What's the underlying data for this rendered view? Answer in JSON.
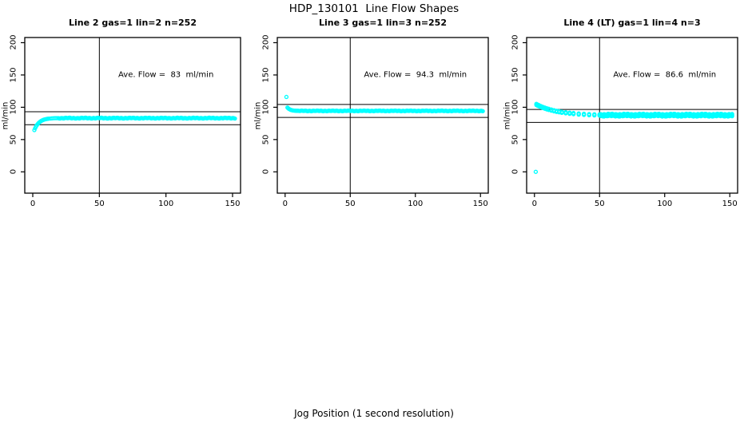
{
  "figure": {
    "main_title": "HDP_130101  Line Flow Shapes",
    "x_axis_label": "Jog Position (1 second resolution)"
  },
  "colors": {
    "marker": "#00ffff",
    "axis": "#000000",
    "refline": "#000000",
    "background": "#ffffff",
    "text": "#000000"
  },
  "chart_data": [
    {
      "type": "scatter",
      "title": "Line 2 gas=1 lin=2 n=252",
      "ylabel": "ml/min",
      "ave_flow": 83,
      "ave_flow_label": "Ave. Flow =  83  ml/min",
      "annotation_xy": [
        100,
        150
      ],
      "n_label": 252,
      "x_ticks": [
        0,
        50,
        100,
        150
      ],
      "y_ticks": [
        0,
        50,
        100,
        150,
        200
      ],
      "xlim": [
        -6,
        156
      ],
      "ylim": [
        -33,
        208
      ],
      "vline_x": 50,
      "hlines_y": [
        93,
        73
      ],
      "marker_style": "open-circle",
      "outlier_points": [],
      "transient_points": [
        [
          1.2,
          64.7
        ],
        [
          1.8,
          67.5
        ],
        [
          2.4,
          70.0
        ],
        [
          3.0,
          72.0
        ],
        [
          3.6,
          73.7
        ],
        [
          4.2,
          75.2
        ],
        [
          4.8,
          76.4
        ],
        [
          5.4,
          77.5
        ],
        [
          6.0,
          78.4
        ],
        [
          6.6,
          79.1
        ],
        [
          7.2,
          79.8
        ],
        [
          7.8,
          80.3
        ],
        [
          8.4,
          80.8
        ],
        [
          9.0,
          81.2
        ],
        [
          9.6,
          81.5
        ],
        [
          10.2,
          81.8
        ],
        [
          10.8,
          82.0
        ],
        [
          11.4,
          82.2
        ],
        [
          12.0,
          82.4
        ],
        [
          13.2,
          82.6
        ],
        [
          14.4,
          82.8
        ],
        [
          15.6,
          83.0
        ],
        [
          16.8,
          83.1
        ],
        [
          18.0,
          83.1
        ],
        [
          19.2,
          83.2
        ]
      ],
      "flat_segment": {
        "x_from": 19.8,
        "x_to": 152,
        "x_step": 0.6,
        "value": 83.2,
        "jitter": 0.7
      },
      "overlay_offsets": [
        0
      ]
    },
    {
      "type": "scatter",
      "title": "Line 3 gas=1 lin=3 n=252",
      "ylabel": "ml/min",
      "ave_flow": 94.3,
      "ave_flow_label": "Ave. Flow =  94.3  ml/min",
      "annotation_xy": [
        100,
        150
      ],
      "n_label": 252,
      "x_ticks": [
        0,
        50,
        100,
        150
      ],
      "y_ticks": [
        0,
        50,
        100,
        150,
        200
      ],
      "xlim": [
        -6,
        156
      ],
      "ylim": [
        -33,
        208
      ],
      "vline_x": 50,
      "hlines_y": [
        104.3,
        84.3
      ],
      "marker_style": "open-circle",
      "outlier_points": [
        [
          1,
          116
        ]
      ],
      "transient_points": [
        [
          1.8,
          99.5
        ],
        [
          2.4,
          98.3
        ],
        [
          3.0,
          97.4
        ],
        [
          3.6,
          96.7
        ],
        [
          4.2,
          96.1
        ],
        [
          4.8,
          95.7
        ],
        [
          5.4,
          95.4
        ],
        [
          6.0,
          95.1
        ],
        [
          6.6,
          94.9
        ],
        [
          7.2,
          94.8
        ],
        [
          7.8,
          94.7
        ],
        [
          8.4,
          94.6
        ],
        [
          9.0,
          94.5
        ],
        [
          9.6,
          94.5
        ]
      ],
      "flat_segment": {
        "x_from": 10.2,
        "x_to": 152,
        "x_step": 0.6,
        "value": 94.4,
        "jitter": 0.55
      },
      "overlay_offsets": [
        0
      ]
    },
    {
      "type": "scatter",
      "title": "Line 4 (LT) gas=1 lin=4 n=3",
      "ylabel": "ml/min",
      "ave_flow": 86.6,
      "ave_flow_label": "Ave. Flow =  86.6  ml/min",
      "annotation_xy": [
        100,
        150
      ],
      "n_label": 3,
      "x_ticks": [
        0,
        50,
        100,
        150
      ],
      "y_ticks": [
        0,
        50,
        100,
        150,
        200
      ],
      "xlim": [
        -6,
        156
      ],
      "ylim": [
        -33,
        208
      ],
      "vline_x": 50,
      "hlines_y": [
        96.6,
        76.6
      ],
      "marker_style": "open-circle",
      "outlier_points": [
        [
          1,
          0
        ]
      ],
      "transient_points": [
        [
          1.5,
          104.3
        ],
        [
          2.5,
          103.3
        ],
        [
          3.5,
          102.3
        ],
        [
          5.0,
          101.0
        ],
        [
          6.5,
          99.7
        ],
        [
          8.0,
          98.6
        ],
        [
          9.5,
          97.6
        ],
        [
          11.0,
          96.7
        ],
        [
          13.0,
          95.6
        ],
        [
          15.0,
          94.6
        ],
        [
          17.0,
          93.7
        ],
        [
          19.0,
          93.0
        ],
        [
          21.0,
          92.3
        ],
        [
          24.0,
          91.5
        ],
        [
          27.0,
          90.8
        ],
        [
          30.0,
          90.2
        ],
        [
          34.0,
          89.5
        ],
        [
          38.0,
          89.0
        ],
        [
          42.0,
          88.6
        ],
        [
          46.0,
          88.3
        ],
        [
          50.0,
          88.1
        ]
      ],
      "flat_segment": {
        "x_from": 51,
        "x_to": 152,
        "x_step": 0.8,
        "value": 87.8,
        "jitter": 1.0
      },
      "overlay_offsets": [
        -1.3,
        0,
        1.3
      ]
    }
  ]
}
